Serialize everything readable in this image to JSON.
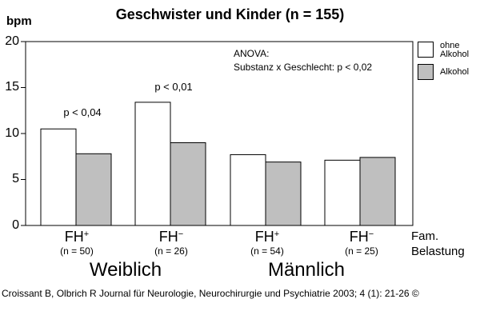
{
  "chart_data": {
    "type": "bar",
    "title": "Geschwister und Kinder (n = 155)",
    "ylabel": "bpm",
    "ylim": [
      0,
      20
    ],
    "yticks": [
      "0",
      "5",
      "10",
      "15",
      "20"
    ],
    "grid": false,
    "categories": [
      {
        "label": "FH",
        "sup": "+",
        "n": "(n = 50)"
      },
      {
        "label": "FH",
        "sup": "−",
        "n": "(n = 26)"
      },
      {
        "label": "FH",
        "sup": "+",
        "n": "(n = 54)"
      },
      {
        "label": "FH",
        "sup": "−",
        "n": "(n = 25)"
      }
    ],
    "series": [
      {
        "name": "ohne Alkohol",
        "legend_lines": [
          "ohne",
          "Alkohol"
        ],
        "color": "#ffffff",
        "values": [
          10.5,
          13.4,
          7.7,
          7.1
        ]
      },
      {
        "name": "Alkohol",
        "legend_lines": [
          "Alkohol"
        ],
        "color": "#bfbfbf",
        "values": [
          7.8,
          9.0,
          6.9,
          7.4
        ]
      }
    ],
    "p_annotations": [
      {
        "group_index": 0,
        "text": "p < 0,04"
      },
      {
        "group_index": 1,
        "text": "p < 0,01"
      }
    ],
    "annotation": {
      "line1": "ANOVA:",
      "line2": "Substanz  x Geschlecht:  p < 0,02"
    },
    "group_labels": [
      "Weiblich",
      "Männlich"
    ],
    "xlabel_lines": [
      "Fam.",
      "Belastung"
    ],
    "legend": "right"
  },
  "citation": "Croissant B, Olbrich R Journal für Neurologie, Neurochirurgie und Psychiatrie 2003; 4 (1): 21-26 ©"
}
